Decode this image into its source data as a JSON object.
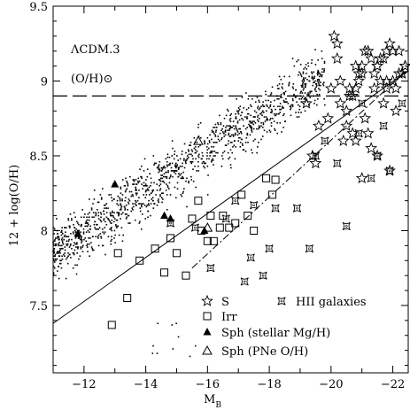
{
  "chart_data": {
    "type": "scatter",
    "title": "",
    "xlabel": "M_B",
    "ylabel": "12 + log(O/H)",
    "xlim": [
      -11,
      -22.5
    ],
    "ylim": [
      7.05,
      9.5
    ],
    "x_reversed": true,
    "x_ticks": [
      -12,
      -14,
      -16,
      -18,
      -20,
      -22
    ],
    "y_ticks": [
      7.5,
      8,
      8.5,
      9,
      9.5
    ],
    "annotations": [
      "ΛCDM.3",
      "(O/H)⊙"
    ],
    "solar_line": {
      "y": 8.9,
      "style": "long-dash"
    },
    "fit_lines": [
      {
        "style": "solid",
        "x": [
          -11,
          -22.5
        ],
        "y": [
          7.38,
          9.07
        ]
      },
      {
        "style": "dash-dot",
        "x": [
          -15.5,
          -22.5
        ],
        "y": [
          7.75,
          9.08
        ]
      }
    ],
    "legend": [
      {
        "marker": "open-star",
        "label": "S"
      },
      {
        "marker": "open-square",
        "label": "Irr"
      },
      {
        "marker": "filled-triangle",
        "label": "Sph (stellar Mg/H)"
      },
      {
        "marker": "open-triangle",
        "label": "Sph (PNe O/H)"
      },
      {
        "marker": "concave-star",
        "label": "HII galaxies"
      }
    ],
    "series": [
      {
        "name": "S",
        "marker": "open-star",
        "x": [
          -19.2,
          -19.4,
          -19.6,
          -19.5,
          -19.9,
          -20.0,
          -20.1,
          -20.2,
          -20.3,
          -20.5,
          -20.7,
          -20.8,
          -21.0,
          -21.2,
          -21.4,
          -21.6,
          -21.8,
          -22.0,
          -22.2,
          -22.4,
          -20.4,
          -20.6,
          -20.9,
          -21.1,
          -21.3,
          -21.5,
          -21.7,
          -21.9,
          -22.1,
          -22.3,
          -20.2,
          -20.5,
          -20.8,
          -21.0,
          -21.3,
          -21.6,
          -21.9,
          -22.2,
          -20.6,
          -20.9,
          -21.2,
          -21.5,
          -21.8,
          -22.1,
          -20.7,
          -21.0,
          -21.4,
          -21.7,
          -22.0,
          -22.3,
          -21.1,
          -21.5,
          -21.8,
          -22.4,
          -20.3,
          -20.8
        ],
        "y": [
          8.85,
          8.5,
          8.7,
          8.45,
          8.75,
          8.95,
          9.3,
          9.15,
          9.0,
          8.8,
          8.65,
          8.95,
          9.1,
          9.2,
          9.05,
          9.15,
          8.95,
          9.2,
          9.05,
          9.1,
          8.6,
          8.9,
          9.0,
          8.75,
          9.15,
          8.5,
          8.85,
          9.25,
          8.95,
          9.05,
          9.25,
          8.7,
          9.1,
          8.35,
          8.55,
          9.0,
          8.4,
          9.2,
          8.95,
          9.05,
          8.65,
          9.1,
          9.2,
          8.8,
          8.9,
          9.05,
          8.95,
          9.15,
          9.0,
          9.05,
          9.2,
          9.1,
          9.0,
          9.1,
          8.85,
          8.6
        ]
      },
      {
        "name": "Irr",
        "marker": "open-square",
        "x": [
          -12.9,
          -13.4,
          -13.8,
          -14.3,
          -14.6,
          -15.0,
          -15.3,
          -15.7,
          -15.8,
          -16.0,
          -16.1,
          -16.2,
          -16.4,
          -16.5,
          -16.7,
          -16.9,
          -17.1,
          -17.3,
          -17.5,
          -17.9,
          -18.1,
          -18.2,
          -13.1,
          -14.8,
          -15.5
        ],
        "y": [
          7.37,
          7.55,
          7.8,
          7.88,
          7.72,
          7.85,
          7.7,
          8.2,
          8.0,
          7.93,
          8.1,
          7.93,
          8.02,
          8.1,
          8.02,
          8.05,
          8.24,
          8.1,
          8.0,
          8.35,
          8.24,
          8.34,
          7.85,
          7.95,
          8.08
        ]
      },
      {
        "name": "Sph (stellar Mg/H)",
        "marker": "filled-triangle",
        "x": [
          -11.8,
          -13.0,
          -14.6,
          -14.8,
          -15.9
        ],
        "y": [
          7.98,
          8.31,
          8.1,
          8.08,
          8.0
        ]
      },
      {
        "name": "Sph (PNe O/H)",
        "marker": "open-triangle",
        "x": [
          -15.7,
          -16.0
        ],
        "y": [
          8.6,
          8.02
        ]
      },
      {
        "name": "HII galaxies",
        "marker": "concave-star",
        "x": [
          -14.8,
          -15.6,
          -16.1,
          -16.6,
          -16.9,
          -17.2,
          -17.4,
          -17.5,
          -17.8,
          -18.0,
          -18.2,
          -18.9,
          -19.3,
          -19.5,
          -19.8,
          -20.2,
          -20.5,
          -20.9,
          -21.0,
          -21.3,
          -21.5,
          -21.7,
          -21.9,
          -22.3
        ],
        "y": [
          8.05,
          8.02,
          7.75,
          8.08,
          8.2,
          7.66,
          7.82,
          8.17,
          7.7,
          7.88,
          8.15,
          8.15,
          7.88,
          8.5,
          8.6,
          8.45,
          8.03,
          8.65,
          8.85,
          8.35,
          8.5,
          8.7,
          8.4,
          8.85
        ]
      },
      {
        "name": "",
        "marker": "dot",
        "x": [],
        "y": []
      }
    ]
  }
}
